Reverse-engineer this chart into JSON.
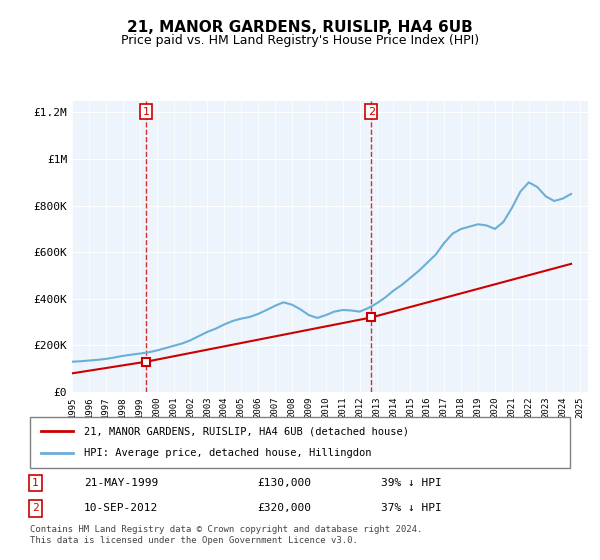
{
  "title": "21, MANOR GARDENS, RUISLIP, HA4 6UB",
  "subtitle": "Price paid vs. HM Land Registry's House Price Index (HPI)",
  "footer": "Contains HM Land Registry data © Crown copyright and database right 2024.\nThis data is licensed under the Open Government Licence v3.0.",
  "legend_line1": "21, MANOR GARDENS, RUISLIP, HA4 6UB (detached house)",
  "legend_line2": "HPI: Average price, detached house, Hillingdon",
  "table": [
    {
      "num": "1",
      "date": "21-MAY-1999",
      "price": "£130,000",
      "pct": "39% ↓ HPI"
    },
    {
      "num": "2",
      "date": "10-SEP-2012",
      "price": "£320,000",
      "pct": "37% ↓ HPI"
    }
  ],
  "sale1_year": 1999.38,
  "sale1_price": 130000,
  "sale2_year": 2012.69,
  "sale2_price": 320000,
  "hpi_years": [
    1995,
    1995.5,
    1996,
    1996.5,
    1997,
    1997.5,
    1998,
    1998.5,
    1999,
    1999.5,
    2000,
    2000.5,
    2001,
    2001.5,
    2002,
    2002.5,
    2003,
    2003.5,
    2004,
    2004.5,
    2005,
    2005.5,
    2006,
    2006.5,
    2007,
    2007.5,
    2008,
    2008.5,
    2009,
    2009.5,
    2010,
    2010.5,
    2011,
    2011.5,
    2012,
    2012.5,
    2013,
    2013.5,
    2014,
    2014.5,
    2015,
    2015.5,
    2016,
    2016.5,
    2017,
    2017.5,
    2018,
    2018.5,
    2019,
    2019.5,
    2020,
    2020.5,
    2021,
    2021.5,
    2022,
    2022.5,
    2023,
    2023.5,
    2024,
    2024.5
  ],
  "hpi_values": [
    130000,
    132000,
    135000,
    138000,
    142000,
    148000,
    155000,
    160000,
    165000,
    170000,
    178000,
    188000,
    198000,
    208000,
    222000,
    240000,
    258000,
    272000,
    290000,
    305000,
    315000,
    322000,
    335000,
    352000,
    370000,
    385000,
    375000,
    355000,
    330000,
    318000,
    330000,
    345000,
    352000,
    350000,
    345000,
    360000,
    380000,
    405000,
    435000,
    460000,
    490000,
    520000,
    555000,
    590000,
    640000,
    680000,
    700000,
    710000,
    720000,
    715000,
    700000,
    730000,
    790000,
    860000,
    900000,
    880000,
    840000,
    820000,
    830000,
    850000
  ],
  "hpi_color": "#6baed6",
  "sale_color": "#cc0000",
  "sale_line_color": "#cc0000",
  "vline_color": "#cc0000",
  "bg_color": "#ddeeff",
  "plot_bg": "#eef4fb",
  "ylim": [
    0,
    1250000
  ],
  "yticks": [
    0,
    200000,
    400000,
    600000,
    800000,
    1000000,
    1200000
  ],
  "ytick_labels": [
    "£0",
    "£200K",
    "£400K",
    "£600K",
    "£800K",
    "£1M",
    "£1.2M"
  ],
  "xlim_start": 1995,
  "xlim_end": 2025.5,
  "sale_line_years": [
    1995,
    1999.38,
    2012.69,
    2024.5
  ],
  "sale_line_values": [
    80000,
    130000,
    320000,
    550000
  ]
}
